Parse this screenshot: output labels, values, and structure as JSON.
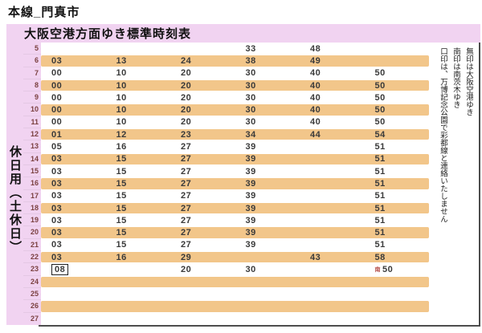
{
  "page_title": "本線_門真市",
  "table": {
    "header": "大阪空港方面ゆき標準時刻表",
    "side_label": "休日用（土休日）",
    "rows": [
      {
        "hour": "5",
        "cells": [
          "",
          "",
          "",
          "33",
          "48",
          ""
        ],
        "shaded": false
      },
      {
        "hour": "6",
        "cells": [
          "03",
          "13",
          "24",
          "38",
          "49",
          ""
        ],
        "shaded": true
      },
      {
        "hour": "7",
        "cells": [
          "00",
          "10",
          "20",
          "30",
          "40",
          "50"
        ],
        "shaded": false
      },
      {
        "hour": "8",
        "cells": [
          "00",
          "10",
          "20",
          "30",
          "40",
          "50"
        ],
        "shaded": true
      },
      {
        "hour": "9",
        "cells": [
          "00",
          "10",
          "20",
          "30",
          "40",
          "50"
        ],
        "shaded": false
      },
      {
        "hour": "10",
        "cells": [
          "00",
          "10",
          "20",
          "30",
          "40",
          "50"
        ],
        "shaded": true
      },
      {
        "hour": "11",
        "cells": [
          "00",
          "10",
          "20",
          "30",
          "40",
          "50"
        ],
        "shaded": false
      },
      {
        "hour": "12",
        "cells": [
          "01",
          "12",
          "23",
          "34",
          "44",
          "54"
        ],
        "shaded": true
      },
      {
        "hour": "13",
        "cells": [
          "05",
          "16",
          "27",
          "39",
          "",
          "51"
        ],
        "shaded": false
      },
      {
        "hour": "14",
        "cells": [
          "03",
          "15",
          "27",
          "39",
          "",
          "51"
        ],
        "shaded": true
      },
      {
        "hour": "15",
        "cells": [
          "03",
          "15",
          "27",
          "39",
          "",
          "51"
        ],
        "shaded": false
      },
      {
        "hour": "16",
        "cells": [
          "03",
          "15",
          "27",
          "39",
          "",
          "51"
        ],
        "shaded": true
      },
      {
        "hour": "17",
        "cells": [
          "03",
          "15",
          "27",
          "39",
          "",
          "51"
        ],
        "shaded": false
      },
      {
        "hour": "18",
        "cells": [
          "03",
          "15",
          "27",
          "39",
          "",
          "51"
        ],
        "shaded": true
      },
      {
        "hour": "19",
        "cells": [
          "03",
          "15",
          "27",
          "39",
          "",
          "51"
        ],
        "shaded": false
      },
      {
        "hour": "20",
        "cells": [
          "03",
          "15",
          "27",
          "39",
          "",
          "51"
        ],
        "shaded": true
      },
      {
        "hour": "21",
        "cells": [
          "03",
          "15",
          "27",
          "39",
          "",
          "51"
        ],
        "shaded": false
      },
      {
        "hour": "22",
        "cells": [
          "03",
          "16",
          "29",
          "",
          "43",
          "58"
        ],
        "shaded": true
      },
      {
        "hour": "23",
        "cells": [
          "08",
          "",
          "20",
          "30",
          "",
          "50"
        ],
        "shaded": false,
        "boxed": [
          0
        ],
        "minami": [
          5
        ]
      },
      {
        "hour": "24",
        "cells": [
          "",
          "",
          "",
          "",
          "",
          ""
        ],
        "shaded": true
      },
      {
        "hour": "25",
        "cells": [
          "",
          "",
          "",
          "",
          "",
          ""
        ],
        "shaded": false
      },
      {
        "hour": "26",
        "cells": [
          "",
          "",
          "",
          "",
          "",
          ""
        ],
        "shaded": true
      },
      {
        "hour": "27",
        "cells": [
          "",
          "",
          "",
          "",
          "",
          ""
        ],
        "shaded": false
      }
    ]
  },
  "legend": {
    "minami_mark": "南",
    "lines": [
      "無印は大阪空港ゆき",
      "南印は南茨木ゆき",
      "口印は、万博記念公園で彩都線と連絡いたしません"
    ]
  },
  "colors": {
    "pink": "#f1d3f1",
    "orange": "#f2c68a",
    "hour_text": "#7b4141",
    "mark_red": "#b85450",
    "border_dark": "#4d4d4d"
  }
}
